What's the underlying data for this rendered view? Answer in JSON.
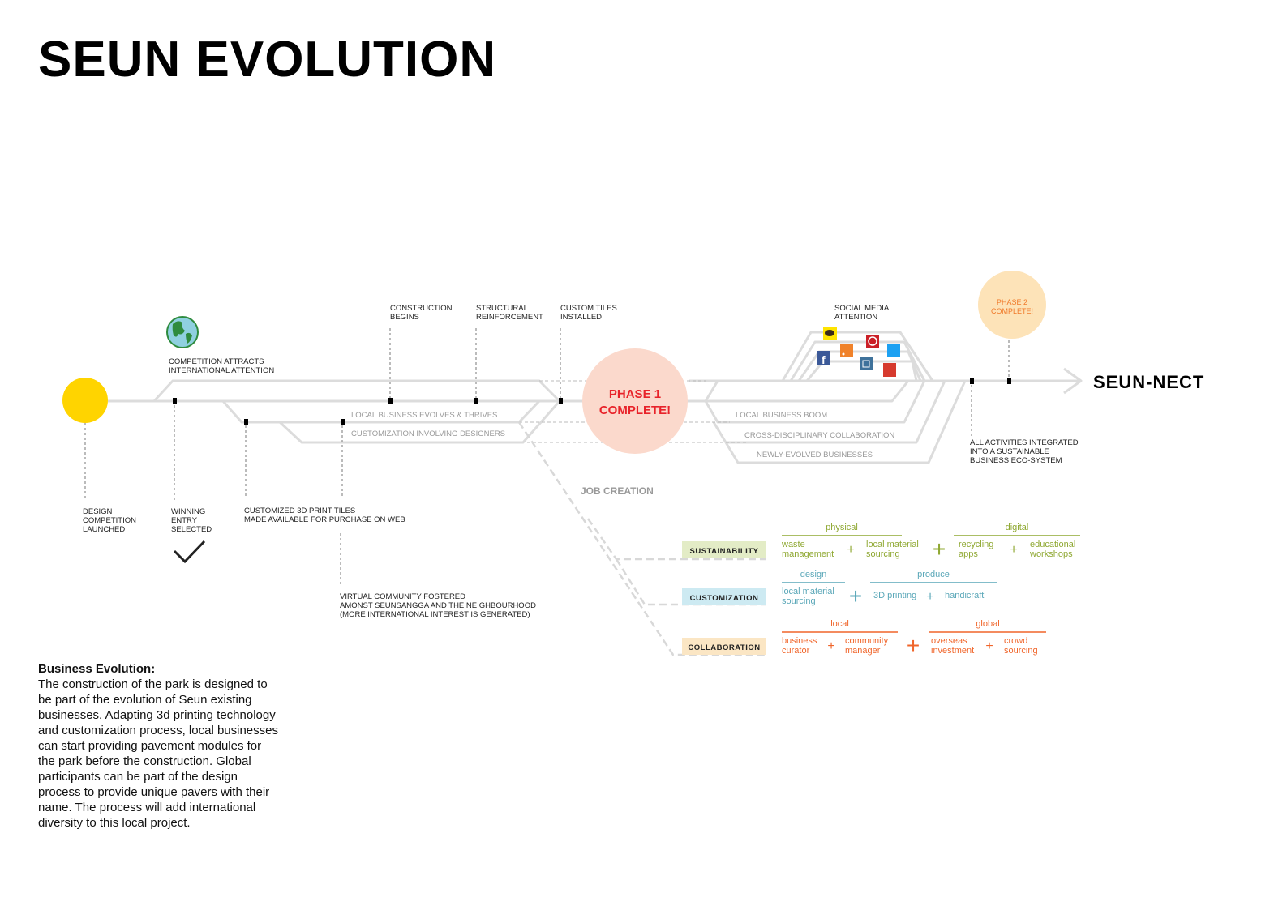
{
  "title": "SEUN EVOLUTION",
  "end_label": "SEUN-NECT",
  "phase1": [
    "PHASE 1",
    "COMPLETE!"
  ],
  "phase2": [
    "PHASE 2",
    "COMPLETE!"
  ],
  "milestones_top": [
    [
      "COMPETITION ATTRACTS",
      "INTERNATIONAL ATTENTION"
    ],
    [
      "CONSTRUCTION",
      "BEGINS"
    ],
    [
      "STRUCTURAL",
      "REINFORCEMENT"
    ],
    [
      "CUSTOM TILES",
      "INSTALLED"
    ],
    [
      "SOCIAL MEDIA",
      "ATTENTION"
    ]
  ],
  "milestones_bottom": [
    [
      "DESIGN",
      "COMPETITION",
      "LAUNCHED"
    ],
    [
      "WINNING",
      "ENTRY",
      "SELECTED"
    ],
    [
      "CUSTOMIZED 3D PRINT TILES",
      "MADE AVAILABLE FOR PURCHASE ON WEB"
    ],
    [
      "VIRTUAL COMMUNITY FOSTERED",
      "AMONST SEUNSANGGA AND THE NEIGHBOURHOOD",
      "(MORE INTERNATIONAL INTEREST IS GENERATED)"
    ],
    [
      "ALL ACTIVITIES INTEGRATED",
      "INTO A SUSTAINABLE",
      "BUSINESS ECO-SYSTEM"
    ]
  ],
  "track_labels": {
    "local_evolves": "LOCAL BUSINESS EVOLVES & THRIVES",
    "customization": "CUSTOMIZATION INVOLVING DESIGNERS",
    "boom": "LOCAL BUSINESS BOOM",
    "cross": "CROSS-DISCIPLINARY COLLABORATION",
    "newly": "NEWLY-EVOLVED BUSINESSES",
    "job": "JOB CREATION"
  },
  "social_icons": [
    "kakaotalk-icon",
    "facebook-icon",
    "rss-icon",
    "pinterest-icon",
    "instagram-icon",
    "twitter-icon",
    "youtube-icon"
  ],
  "categories": [
    {
      "name": "SUSTAINABILITY",
      "color": "#8fa832",
      "bg": "#e3ecc6",
      "groups": [
        {
          "label": "physical",
          "items": [
            [
              "waste",
              "management"
            ],
            [
              "local material",
              "sourcing"
            ]
          ]
        },
        {
          "label": "digital",
          "items": [
            [
              "recycling",
              "apps"
            ],
            [
              "educational",
              "workshops"
            ]
          ]
        }
      ]
    },
    {
      "name": "CUSTOMIZATION",
      "color": "#5aa7b8",
      "bg": "#cdeaf2",
      "groups": [
        {
          "label": "design",
          "items": [
            [
              "local material",
              "sourcing"
            ]
          ]
        },
        {
          "label": "produce",
          "items": [
            [
              "3D printing"
            ],
            [
              "handicraft"
            ]
          ]
        }
      ]
    },
    {
      "name": "COLLABORATION",
      "color": "#f0652a",
      "bg": "#fbe6c4",
      "groups": [
        {
          "label": "local",
          "items": [
            [
              "business",
              "curator"
            ],
            [
              "community",
              "manager"
            ]
          ]
        },
        {
          "label": "global",
          "items": [
            [
              "overseas",
              "investment"
            ],
            [
              "crowd",
              "sourcing"
            ]
          ]
        }
      ]
    }
  ],
  "description": {
    "heading": "Business Evolution:",
    "body": "The construction of the park is designed to be part of the evolution of Seun existing businesses. Adapting 3d printing technology and customization process, local businesses can start providing pavement modules for the park before the construction. Global participants can be part of the design process to provide unique pavers with their name. The process will add international diversity to this local project."
  },
  "colors": {
    "start": "#ffd400",
    "phase1": "#fbd9cc",
    "phase1_text": "#e8232a",
    "phase2": "#fde3b8",
    "phase2_text": "#f07a2a",
    "track": "#dcdcdc"
  }
}
